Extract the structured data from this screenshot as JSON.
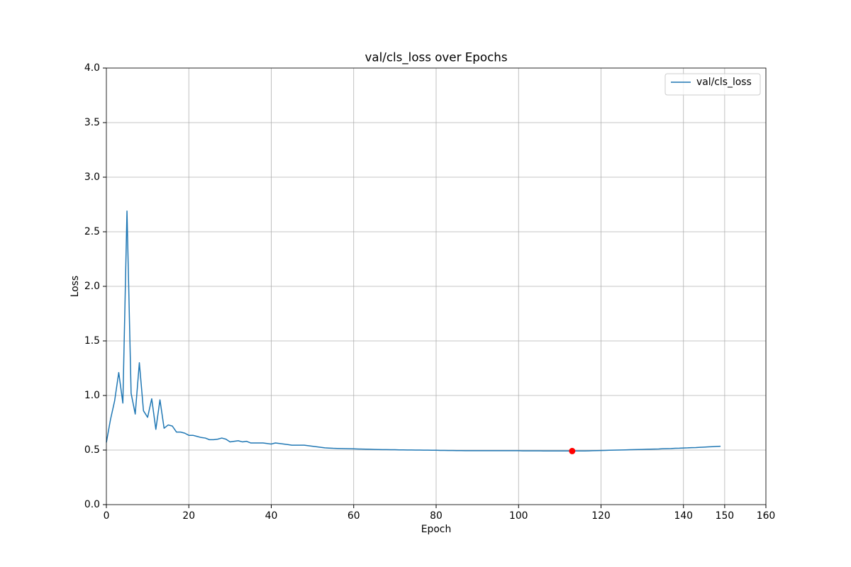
{
  "chart_data": {
    "type": "line",
    "title": "val/cls_loss over Epochs",
    "xlabel": "Epoch",
    "ylabel": "Loss",
    "x": [
      0,
      1,
      2,
      3,
      4,
      5,
      6,
      7,
      8,
      9,
      10,
      11,
      12,
      13,
      14,
      15,
      16,
      17,
      18,
      19,
      20,
      21,
      22,
      23,
      24,
      25,
      26,
      27,
      28,
      29,
      30,
      31,
      32,
      33,
      34,
      35,
      36,
      37,
      38,
      39,
      40,
      41,
      42,
      43,
      44,
      45,
      46,
      47,
      48,
      49,
      50,
      51,
      52,
      53,
      54,
      55,
      56,
      57,
      58,
      59,
      60,
      61,
      62,
      63,
      64,
      65,
      66,
      67,
      68,
      69,
      70,
      71,
      72,
      73,
      74,
      75,
      76,
      77,
      78,
      79,
      80,
      81,
      82,
      83,
      84,
      85,
      86,
      87,
      88,
      89,
      90,
      91,
      92,
      93,
      94,
      95,
      96,
      97,
      98,
      99,
      100,
      101,
      102,
      103,
      104,
      105,
      106,
      107,
      108,
      109,
      110,
      111,
      112,
      113,
      114,
      115,
      116,
      117,
      118,
      119,
      120,
      121,
      122,
      123,
      124,
      125,
      126,
      127,
      128,
      129,
      130,
      131,
      132,
      133,
      134,
      135,
      136,
      137,
      138,
      139,
      140,
      141,
      142,
      143,
      144,
      145,
      146,
      147,
      148,
      149
    ],
    "series": [
      {
        "name": "val/cls_loss",
        "color": "#1f77b4",
        "values": [
          0.57,
          0.78,
          0.95,
          1.21,
          0.93,
          2.69,
          1.02,
          0.83,
          1.3,
          0.86,
          0.8,
          0.97,
          0.69,
          0.96,
          0.7,
          0.73,
          0.72,
          0.665,
          0.665,
          0.655,
          0.635,
          0.635,
          0.625,
          0.615,
          0.61,
          0.595,
          0.595,
          0.6,
          0.61,
          0.6,
          0.575,
          0.58,
          0.585,
          0.575,
          0.58,
          0.565,
          0.565,
          0.565,
          0.565,
          0.56,
          0.555,
          0.565,
          0.56,
          0.555,
          0.55,
          0.545,
          0.545,
          0.545,
          0.545,
          0.54,
          0.535,
          0.53,
          0.525,
          0.52,
          0.518,
          0.516,
          0.515,
          0.514,
          0.513,
          0.512,
          0.511,
          0.51,
          0.509,
          0.508,
          0.507,
          0.506,
          0.505,
          0.504,
          0.504,
          0.503,
          0.503,
          0.502,
          0.502,
          0.501,
          0.501,
          0.5,
          0.5,
          0.499,
          0.499,
          0.498,
          0.498,
          0.497,
          0.497,
          0.496,
          0.496,
          0.495,
          0.495,
          0.494,
          0.494,
          0.494,
          0.494,
          0.494,
          0.494,
          0.494,
          0.494,
          0.494,
          0.494,
          0.494,
          0.494,
          0.494,
          0.494,
          0.493,
          0.493,
          0.493,
          0.493,
          0.493,
          0.492,
          0.492,
          0.492,
          0.492,
          0.492,
          0.492,
          0.492,
          0.491,
          0.492,
          0.492,
          0.492,
          0.493,
          0.494,
          0.495,
          0.496,
          0.497,
          0.498,
          0.499,
          0.5,
          0.501,
          0.502,
          0.503,
          0.504,
          0.505,
          0.506,
          0.507,
          0.508,
          0.509,
          0.51,
          0.512,
          0.513,
          0.514,
          0.516,
          0.517,
          0.519,
          0.52,
          0.522,
          0.523,
          0.525,
          0.527,
          0.529,
          0.531,
          0.533,
          0.535
        ]
      }
    ],
    "highlight": {
      "x": 113,
      "y": 0.491,
      "color": "#ff0000"
    },
    "xlim": [
      0,
      160
    ],
    "xticks": [
      0,
      20,
      40,
      60,
      80,
      100,
      120,
      140,
      150,
      160
    ],
    "ylim": [
      0,
      4
    ],
    "yticks": [
      {
        "value": 0,
        "label": "0.0"
      },
      0.5,
      {
        "value": 1,
        "label": "1.0"
      },
      1.5,
      {
        "value": 2,
        "label": "2.0"
      },
      2.5,
      {
        "value": 3,
        "label": "3.0"
      },
      3.5,
      {
        "value": 4,
        "label": "4.0"
      }
    ],
    "grid": true,
    "legend": "upper-right"
  }
}
